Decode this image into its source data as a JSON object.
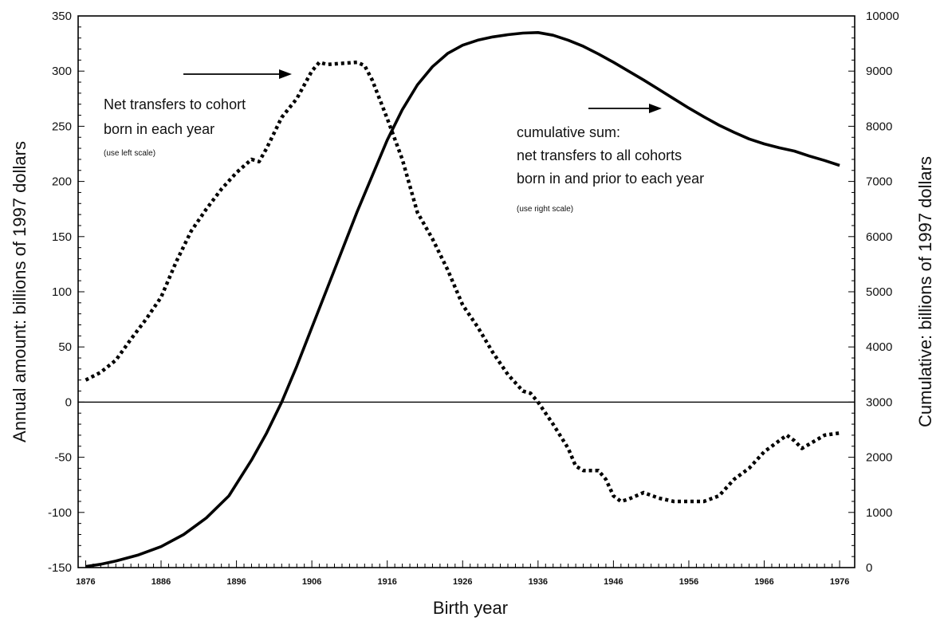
{
  "chart_data": {
    "type": "line",
    "xlabel": "Birth year",
    "ylabel_left": "Annual amount: billions of 1997 dollars",
    "ylabel_right": "Cumulative: billions of 1997 dollars",
    "xlim": [
      1875,
      1978
    ],
    "ylim_left": [
      -150,
      350
    ],
    "ylim_right": [
      0,
      10000
    ],
    "x_ticks": [
      1876,
      1886,
      1896,
      1906,
      1916,
      1926,
      1936,
      1946,
      1956,
      1966,
      1976
    ],
    "y_ticks_left": [
      -150,
      -100,
      -50,
      0,
      50,
      100,
      150,
      200,
      250,
      300,
      350
    ],
    "y_ticks_right": [
      0,
      1000,
      2000,
      3000,
      4000,
      5000,
      6000,
      7000,
      8000,
      9000,
      10000
    ],
    "grid": false,
    "zero_line": true,
    "series": [
      {
        "name": "Net transfers to cohort born in each year",
        "axis": "left",
        "style": "dotted",
        "x": [
          1876,
          1878,
          1880,
          1882,
          1884,
          1886,
          1888,
          1890,
          1892,
          1894,
          1896,
          1898,
          1899,
          1900,
          1902,
          1904,
          1906,
          1907,
          1908,
          1910,
          1912,
          1913,
          1914,
          1916,
          1918,
          1920,
          1922,
          1924,
          1926,
          1928,
          1930,
          1932,
          1934,
          1935,
          1936,
          1938,
          1940,
          1941,
          1942,
          1944,
          1945,
          1946,
          1947,
          1948,
          1950,
          1952,
          1954,
          1956,
          1958,
          1960,
          1962,
          1964,
          1966,
          1968,
          1969,
          1970,
          1971,
          1972,
          1974,
          1976
        ],
        "y": [
          20,
          27,
          38,
          57,
          75,
          95,
          127,
          155,
          175,
          193,
          208,
          220,
          218,
          230,
          258,
          275,
          300,
          308,
          306,
          307,
          308,
          305,
          292,
          257,
          220,
          172,
          148,
          120,
          88,
          68,
          45,
          25,
          10,
          8,
          0,
          -20,
          -42,
          -58,
          -62,
          -62,
          -70,
          -85,
          -90,
          -88,
          -82,
          -87,
          -90,
          -90,
          -90,
          -85,
          -70,
          -60,
          -45,
          -35,
          -30,
          -35,
          -42,
          -38,
          -30,
          -28
        ]
      },
      {
        "name": "cumulative sum: net transfers to all cohorts born in and prior to each year",
        "axis": "right",
        "style": "solid",
        "x": [
          1876,
          1878,
          1880,
          1883,
          1886,
          1889,
          1892,
          1895,
          1898,
          1900,
          1902,
          1904,
          1906,
          1908,
          1910,
          1912,
          1914,
          1916,
          1918,
          1920,
          1922,
          1924,
          1926,
          1928,
          1930,
          1932,
          1934,
          1936,
          1938,
          1940,
          1942,
          1944,
          1946,
          1948,
          1950,
          1952,
          1954,
          1956,
          1958,
          1960,
          1962,
          1964,
          1966,
          1968,
          1970,
          1972,
          1974,
          1976
        ],
        "y": [
          20,
          60,
          120,
          230,
          380,
          600,
          900,
          1300,
          1950,
          2440,
          3000,
          3650,
          4350,
          5050,
          5750,
          6450,
          7100,
          7750,
          8300,
          8750,
          9080,
          9320,
          9470,
          9560,
          9620,
          9660,
          9690,
          9700,
          9650,
          9560,
          9450,
          9310,
          9160,
          9000,
          8840,
          8670,
          8500,
          8330,
          8170,
          8020,
          7890,
          7770,
          7680,
          7610,
          7550,
          7460,
          7380,
          7290
        ]
      }
    ],
    "annotations": {
      "left_title_line1": "Net transfers to cohort",
      "left_title_line2": "born in each year",
      "left_note": "(use left scale)",
      "right_title_line1": "cumulative sum:",
      "right_title_line2": "net transfers to all cohorts",
      "right_title_line3": "born in and prior to each year",
      "right_note": "(use right scale)"
    }
  }
}
